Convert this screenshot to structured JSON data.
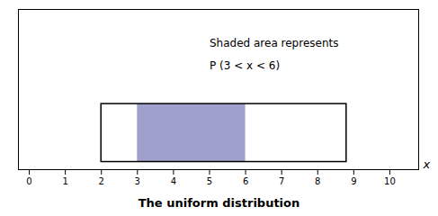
{
  "chart_data": {
    "type": "uniform",
    "title": "The uniform distribution",
    "xlabel": "x",
    "box": {
      "x1": 2,
      "x2": 8.8,
      "y1": 0,
      "y2": 0.38,
      "color": "black"
    },
    "shaded": {
      "x1": 3,
      "x2": 6,
      "y1": 0,
      "y2": 0.38,
      "color": "#8080bb"
    },
    "annotations": [
      {
        "text": "Shaded area represents",
        "x": 5.0,
        "y": 0.78
      },
      {
        "text": "P (3 < x < 6)",
        "x": 5.0,
        "y": 0.63
      }
    ],
    "xlim": [
      -0.3,
      10.8
    ],
    "ylim": [
      -0.05,
      1.0
    ],
    "xticks": [
      0,
      1,
      2,
      3,
      4,
      5,
      6,
      7,
      8,
      9,
      10
    ],
    "tick_labels": "x"
  }
}
